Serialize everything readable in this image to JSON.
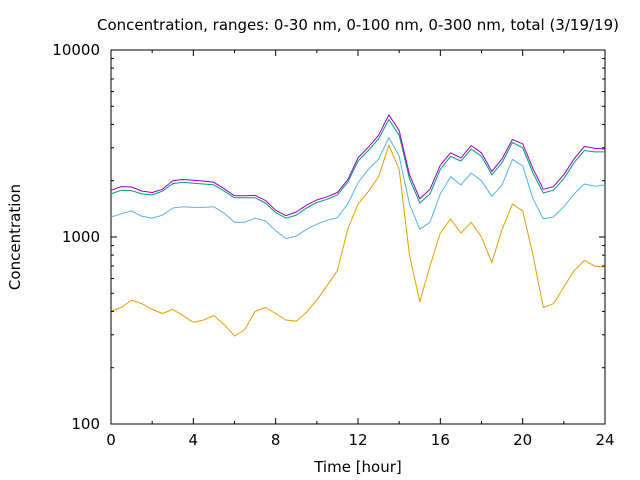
{
  "chart_data": {
    "type": "line",
    "title": "Concentration, ranges: 0-30 nm, 0-100 nm, 0-300 nm, total (3/19/19)",
    "xlabel": "Time [hour]",
    "ylabel": "Concentration",
    "xlim": [
      0,
      24
    ],
    "ylim": [
      100,
      10000
    ],
    "yscale": "log",
    "grid": false,
    "legend": "none",
    "x_ticks": [
      "0",
      "4",
      "8",
      "12",
      "16",
      "20",
      "24"
    ],
    "x_tick_values": [
      0,
      4,
      8,
      12,
      16,
      20,
      24
    ],
    "y_ticks": [
      "100",
      "1000",
      "10000"
    ],
    "y_tick_values": [
      100,
      1000,
      10000
    ],
    "x": [
      0,
      0.5,
      1,
      1.5,
      2,
      2.5,
      3,
      3.5,
      4,
      4.5,
      5,
      5.5,
      6,
      6.5,
      7,
      7.5,
      8,
      8.5,
      9,
      9.5,
      10,
      10.5,
      11,
      11.5,
      12,
      12.5,
      13,
      13.5,
      14,
      14.5,
      15,
      15.5,
      16,
      16.5,
      17,
      17.5,
      18,
      18.5,
      19,
      19.5,
      20,
      20.5,
      21,
      21.5,
      22,
      22.5,
      23,
      23.5,
      24
    ],
    "series": [
      {
        "color": "#e69f00",
        "values": [
          400,
          420,
          460,
          440,
          410,
          390,
          410,
          380,
          350,
          360,
          380,
          340,
          295,
          320,
          400,
          420,
          390,
          360,
          355,
          395,
          460,
          550,
          660,
          1100,
          1500,
          1750,
          2100,
          3100,
          2300,
          800,
          450,
          700,
          1050,
          1250,
          1050,
          1200,
          1000,
          730,
          1100,
          1500,
          1380,
          800,
          420,
          440,
          540,
          660,
          750,
          700,
          690
        ]
      },
      {
        "color": "#56b4e9",
        "values": [
          1280,
          1330,
          1380,
          1290,
          1260,
          1310,
          1430,
          1450,
          1440,
          1440,
          1450,
          1340,
          1200,
          1200,
          1260,
          1220,
          1080,
          980,
          1010,
          1100,
          1170,
          1230,
          1270,
          1500,
          1950,
          2300,
          2600,
          3400,
          2700,
          1500,
          1100,
          1200,
          1700,
          2100,
          1900,
          2200,
          2000,
          1650,
          1900,
          2600,
          2400,
          1600,
          1250,
          1280,
          1450,
          1700,
          1920,
          1870,
          1900
        ]
      },
      {
        "color": "#009e73",
        "values": [
          1700,
          1780,
          1770,
          1700,
          1680,
          1760,
          1930,
          1960,
          1940,
          1920,
          1900,
          1760,
          1620,
          1620,
          1620,
          1520,
          1350,
          1260,
          1310,
          1430,
          1530,
          1590,
          1680,
          1960,
          2550,
          2900,
          3350,
          4250,
          3500,
          2050,
          1520,
          1700,
          2300,
          2700,
          2550,
          2950,
          2700,
          2150,
          2500,
          3200,
          3000,
          2200,
          1720,
          1780,
          2050,
          2500,
          2900,
          2850,
          2850
        ]
      },
      {
        "color": "#9400d3",
        "values": [
          1780,
          1860,
          1850,
          1760,
          1730,
          1800,
          2000,
          2030,
          2010,
          1990,
          1960,
          1810,
          1660,
          1660,
          1670,
          1570,
          1390,
          1300,
          1360,
          1480,
          1580,
          1640,
          1730,
          2020,
          2650,
          3020,
          3500,
          4500,
          3700,
          2150,
          1600,
          1800,
          2420,
          2820,
          2650,
          3080,
          2820,
          2240,
          2620,
          3320,
          3150,
          2320,
          1800,
          1860,
          2150,
          2620,
          3050,
          2980,
          2950
        ]
      }
    ]
  }
}
